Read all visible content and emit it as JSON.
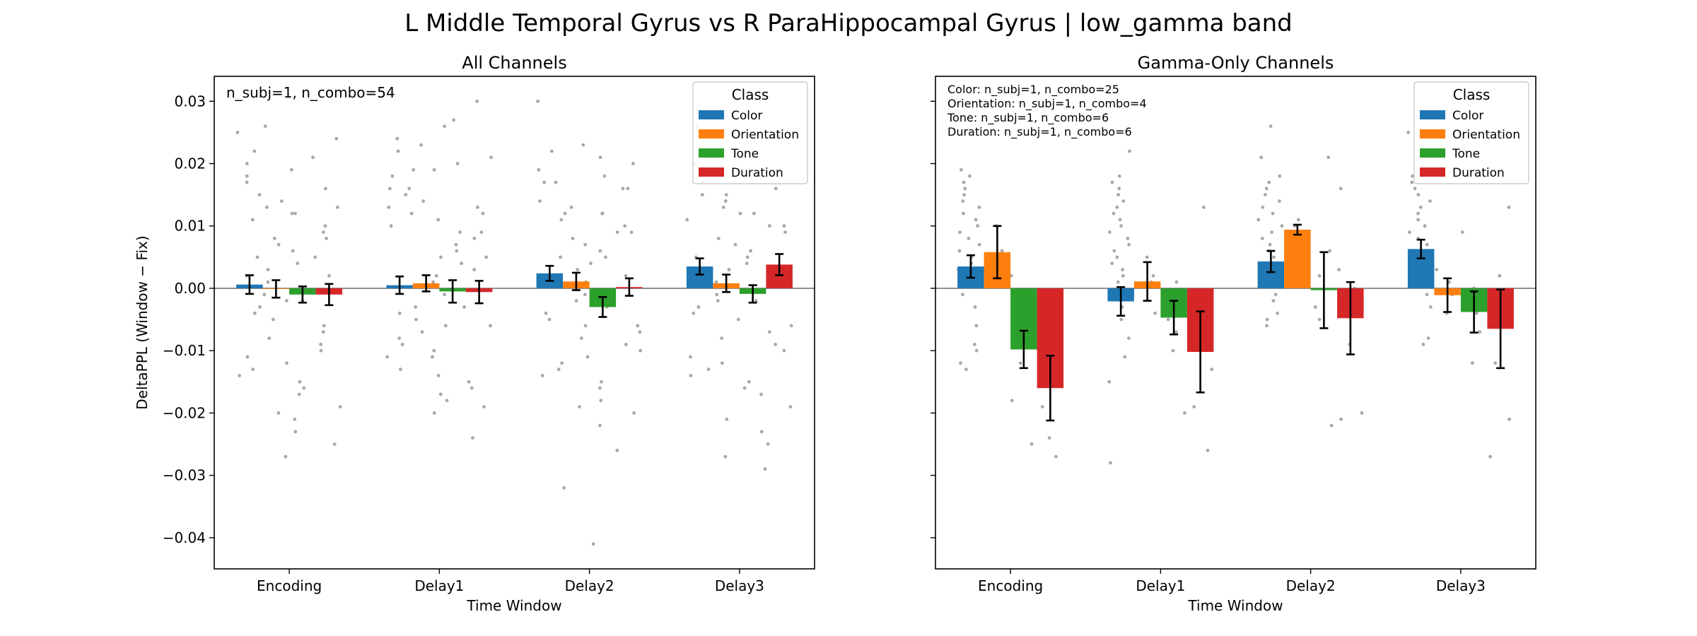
{
  "figure": {
    "suptitle": "L Middle Temporal Gyrus vs R ParaHippocampal Gyrus  |  low_gamma band"
  },
  "chart_data": [
    {
      "type": "bar",
      "title": "All Channels",
      "xlabel": "Time Window",
      "ylabel": "DeltaPPL (Window − Fix)",
      "categories": [
        "Encoding",
        "Delay1",
        "Delay2",
        "Delay3"
      ],
      "ylim": [
        -0.045,
        0.034
      ],
      "yticks": [
        0.03,
        0.02,
        0.01,
        0.0,
        -0.01,
        -0.02,
        -0.03,
        -0.04
      ],
      "ytick_labels": [
        "0.03",
        "0.02",
        "0.01",
        "0.00",
        "−0.01",
        "−0.02",
        "−0.03",
        "−0.04"
      ],
      "annotation": [
        "n_subj=1, n_combo=54"
      ],
      "legend": {
        "title": "Class",
        "position": "top-right"
      },
      "series": [
        {
          "name": "Color",
          "color": "#1f77b4",
          "values": [
            0.0006,
            0.0005,
            0.0024,
            0.0035
          ],
          "err": [
            0.0015,
            0.0014,
            0.0012,
            0.0013
          ]
        },
        {
          "name": "Orientation",
          "color": "#ff7f0e",
          "values": [
            -0.0001,
            0.0008,
            0.0011,
            0.0008
          ],
          "err": [
            0.0014,
            0.0013,
            0.0014,
            0.0014
          ]
        },
        {
          "name": "Tone",
          "color": "#2ca02c",
          "values": [
            -0.001,
            -0.0005,
            -0.003,
            -0.0009
          ],
          "err": [
            0.0013,
            0.0018,
            0.0016,
            0.0014
          ]
        },
        {
          "name": "Duration",
          "color": "#d62728",
          "values": [
            -0.001,
            -0.0006,
            0.0002,
            0.0038
          ],
          "err": [
            0.0017,
            0.0018,
            0.0014,
            0.0017
          ]
        }
      ],
      "points": [
        [
          0.015,
          -0.012,
          0.019,
          0.008,
          -0.003,
          0.013,
          -0.017,
          0.002,
          0.011,
          -0.008,
          0.006,
          -0.019,
          0.017,
          0.001,
          -0.002,
          0.009,
          -0.014,
          0.014,
          0.004,
          -0.006,
          0.025,
          -0.027,
          -0.021,
          0.013,
          -0.011,
          0.003,
          -0.016,
          0.01,
          -0.004,
          0.007,
          0.012,
          -0.009,
          0.018,
          -0.001,
          0.005,
          0.016,
          -0.013,
          -0.02,
          0.021,
          -0.007,
          0.002,
          0.008,
          -0.015,
          0.024,
          0.02,
          -0.005,
          0.012,
          -0.01,
          0.022,
          0.026,
          -0.023,
          -0.025,
          0.005,
          -0.002
        ],
        [
          0.016,
          -0.01,
          0.02,
          0.009,
          -0.004,
          0.011,
          -0.018,
          0.003,
          0.01,
          -0.007,
          0.007,
          -0.019,
          0.018,
          0.002,
          -0.003,
          0.008,
          -0.013,
          0.014,
          0.005,
          -0.006,
          0.024,
          -0.02,
          0.027,
          0.03,
          0.013,
          -0.011,
          0.004,
          -0.016,
          0.012,
          -0.005,
          0.006,
          0.012,
          -0.009,
          0.019,
          -0.001,
          0.005,
          0.016,
          -0.014,
          -0.017,
          0.021,
          -0.008,
          0.001,
          0.009,
          -0.015,
          0.022,
          0.019,
          -0.006,
          0.013,
          -0.011,
          0.023,
          0.026,
          -0.024,
          0.015,
          -0.003
        ],
        [
          0.014,
          -0.011,
          0.018,
          0.009,
          -0.004,
          0.012,
          -0.018,
          0.002,
          0.011,
          -0.008,
          0.006,
          -0.02,
          0.017,
          0.001,
          -0.003,
          0.009,
          -0.014,
          0.013,
          0.004,
          -0.006,
          0.03,
          -0.032,
          -0.041,
          0.016,
          -0.012,
          0.003,
          -0.016,
          0.01,
          -0.005,
          0.007,
          0.012,
          -0.009,
          0.019,
          -0.001,
          0.005,
          0.016,
          -0.013,
          -0.019,
          0.021,
          -0.007,
          0.002,
          0.008,
          -0.015,
          0.02,
          0.017,
          -0.006,
          0.012,
          -0.01,
          0.022,
          0.023,
          -0.022,
          -0.026,
          0.005,
          -0.002
        ],
        [
          0.015,
          -0.012,
          0.018,
          0.009,
          -0.003,
          0.013,
          -0.017,
          0.002,
          0.011,
          -0.008,
          0.006,
          -0.019,
          0.017,
          0.001,
          -0.002,
          0.01,
          -0.014,
          0.014,
          0.004,
          -0.006,
          0.022,
          -0.027,
          -0.029,
          0.024,
          -0.011,
          0.003,
          -0.016,
          0.01,
          -0.004,
          0.007,
          0.012,
          -0.009,
          0.018,
          -0.001,
          0.005,
          0.016,
          -0.013,
          -0.021,
          0.021,
          -0.007,
          0.002,
          0.008,
          -0.015,
          0.019,
          0.02,
          -0.005,
          0.012,
          -0.01,
          0.026,
          0.015,
          -0.023,
          -0.025,
          0.005,
          -0.002
        ]
      ]
    },
    {
      "type": "bar",
      "title": "Gamma-Only Channels",
      "xlabel": "Time Window",
      "ylabel": "",
      "categories": [
        "Encoding",
        "Delay1",
        "Delay2",
        "Delay3"
      ],
      "ylim": [
        -0.045,
        0.034
      ],
      "yticks": [
        0.03,
        0.02,
        0.01,
        0.0,
        -0.01,
        -0.02,
        -0.03,
        -0.04
      ],
      "ytick_labels": [
        "",
        "",
        "",
        "",
        "",
        "",
        "",
        ""
      ],
      "annotation": [
        "Color: n_subj=1, n_combo=25",
        "Orientation: n_subj=1, n_combo=4",
        "Tone: n_subj=1, n_combo=6",
        "Duration: n_subj=1, n_combo=6"
      ],
      "legend": {
        "title": "Class",
        "position": "top-right"
      },
      "series": [
        {
          "name": "Color",
          "color": "#1f77b4",
          "values": [
            0.0035,
            -0.0021,
            0.0043,
            0.0063
          ],
          "err": [
            0.0018,
            0.0023,
            0.0017,
            0.0015
          ]
        },
        {
          "name": "Orientation",
          "color": "#ff7f0e",
          "values": [
            0.0058,
            0.0011,
            0.0094,
            -0.0011
          ],
          "err": [
            0.0042,
            0.0031,
            0.0008,
            0.0027
          ]
        },
        {
          "name": "Tone",
          "color": "#2ca02c",
          "values": [
            -0.0098,
            -0.0047,
            -0.0003,
            -0.0038
          ],
          "err": [
            0.003,
            0.0027,
            0.0061,
            0.0033
          ]
        },
        {
          "name": "Duration",
          "color": "#d62728",
          "values": [
            -0.016,
            -0.0102,
            -0.0048,
            -0.0065
          ],
          "err": [
            0.0052,
            0.0065,
            0.0058,
            0.0063
          ]
        }
      ],
      "points": [
        [
          0.019,
          0.013,
          -0.01,
          0.006,
          0.015,
          -0.012,
          0.01,
          0.017,
          0.004,
          -0.003,
          0.012,
          0.008,
          -0.001,
          0.002,
          0.014,
          -0.006,
          0.007,
          0.016,
          0.011,
          -0.013,
          0.009,
          0.005,
          0.018,
          0.003,
          -0.009
        ],
        [
          0.022,
          0.018,
          0.009,
          0.015,
          0.004,
          -0.005,
          0.016,
          0.011,
          0.001,
          0.013,
          -0.008,
          -0.028,
          0.003,
          0.014,
          -0.015,
          0.01,
          0.006,
          -0.011,
          0.002,
          0.017,
          0.005,
          0.012,
          0.008,
          -0.003,
          0.007
        ],
        [
          0.026,
          0.021,
          0.017,
          0.014,
          0.013,
          0.012,
          0.011,
          0.009,
          0.008,
          0.006,
          0.005,
          0.004,
          0.003,
          0.002,
          0.001,
          -0.001,
          -0.002,
          -0.004,
          -0.005,
          -0.006,
          0.015,
          0.01,
          0.007,
          0.016,
          0.018
        ],
        [
          0.025,
          0.021,
          0.018,
          0.015,
          0.013,
          0.012,
          0.01,
          0.009,
          0.007,
          0.006,
          0.005,
          0.004,
          0.003,
          0.002,
          0.001,
          -0.001,
          -0.003,
          -0.008,
          -0.009,
          0.016,
          0.014,
          0.011,
          0.008,
          0.017,
          0.019
        ]
      ],
      "class_points": [
        [
          [
            0.019,
            0.013,
            -0.01,
            0.006,
            0.015,
            -0.012,
            0.01,
            0.017,
            0.004,
            -0.003,
            0.012,
            0.008,
            -0.001,
            0.002,
            0.014,
            -0.006,
            0.007,
            0.016,
            0.011,
            -0.013,
            0.009,
            0.005,
            0.018,
            0.003,
            -0.009
          ],
          [
            0.006,
            0.002,
            0.01,
            0.004
          ],
          [
            -0.003,
            -0.012,
            -0.018,
            -0.006,
            -0.025,
            0.002
          ],
          [
            -0.024,
            -0.019,
            -0.027,
            -0.01,
            -0.014,
            -0.006
          ]
        ],
        [
          [
            0.022,
            0.018,
            0.009,
            0.015,
            0.004,
            -0.005,
            0.016,
            0.011,
            0.001,
            0.013,
            -0.008,
            -0.028,
            0.003,
            0.014,
            -0.015,
            0.01,
            0.006,
            -0.011,
            0.002,
            0.017,
            0.005,
            0.012,
            0.008,
            -0.003,
            0.007
          ],
          [
            0.005,
            0.001,
            -0.004,
            0.002
          ],
          [
            -0.002,
            -0.007,
            -0.02,
            -0.005,
            0.001,
            -0.01
          ],
          [
            0.013,
            -0.019,
            -0.026,
            -0.004,
            -0.013,
            -0.008
          ]
        ],
        [
          [
            0.026,
            0.021,
            0.017,
            0.014,
            0.013,
            0.012,
            0.011,
            0.009,
            0.008,
            0.006,
            0.005,
            0.004,
            0.003,
            0.002,
            0.001,
            -0.001,
            -0.002,
            -0.004,
            -0.005,
            -0.006,
            0.015,
            0.01,
            0.007,
            0.016,
            0.018
          ],
          [
            0.01,
            0.009,
            0.008,
            0.011
          ],
          [
            0.021,
            0.002,
            -0.005,
            -0.022,
            0.006,
            -0.003
          ],
          [
            0.016,
            -0.021,
            -0.009,
            0.003,
            -0.02,
            0.0
          ]
        ],
        [
          [
            0.025,
            0.021,
            0.018,
            0.015,
            0.013,
            0.012,
            0.01,
            0.009,
            0.007,
            0.006,
            0.005,
            0.004,
            0.003,
            0.002,
            0.001,
            -0.001,
            -0.003,
            -0.008,
            -0.009,
            0.016,
            0.014,
            0.011,
            0.008,
            0.017,
            0.019
          ],
          [
            -0.001,
            0.003,
            -0.004,
            0.001
          ],
          [
            0.009,
            -0.004,
            -0.012,
            0.0,
            -0.003,
            -0.007
          ],
          [
            0.013,
            -0.027,
            -0.021,
            0.002,
            -0.012,
            -0.005
          ]
        ]
      ]
    }
  ]
}
